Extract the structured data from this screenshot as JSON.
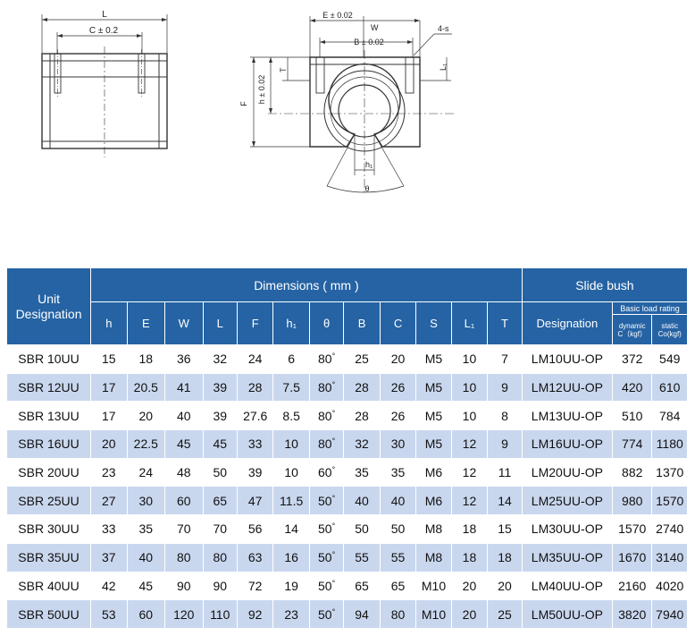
{
  "drawing": {
    "left_labels": {
      "length": "L",
      "hole_spacing": "C ± 0.2"
    },
    "right_labels": {
      "E": "E ± 0.02",
      "W": "W",
      "B": "B ± 0.02",
      "S": "4-s",
      "T": "T",
      "L1": "L₁",
      "h": "h ± 0.02",
      "F": "F",
      "h1": "h₁",
      "theta": "θ"
    }
  },
  "table": {
    "unit_header_line1": "Unit",
    "unit_header_line2": "Designation",
    "dimensions_header": "Dimensions ( mm )",
    "slide_bush_header": "Slide bush",
    "columns": [
      "h",
      "E",
      "W",
      "L",
      "F",
      "h₁",
      "θ",
      "B",
      "C",
      "S",
      "L₁",
      "T"
    ],
    "designation_header": "Designation",
    "load_rating_header": "Basic load rating",
    "dynamic_line1": "dynamic",
    "dynamic_line2": "C（kgf）",
    "static_line1": "static",
    "static_line2": "Co(kgf)",
    "rows": [
      {
        "unit": "SBR 10UU",
        "h": "15",
        "E": "18",
        "W": "36",
        "L": "32",
        "F": "24",
        "h1": "6",
        "theta": "80",
        "B": "25",
        "C": "20",
        "S": "M5",
        "L1": "10",
        "T": "7",
        "designation": "LM10UU-OP",
        "dynamic": "372",
        "static": "549"
      },
      {
        "unit": "SBR 12UU",
        "h": "17",
        "E": "20.5",
        "W": "41",
        "L": "39",
        "F": "28",
        "h1": "7.5",
        "theta": "80",
        "B": "28",
        "C": "26",
        "S": "M5",
        "L1": "10",
        "T": "9",
        "designation": "LM12UU-OP",
        "dynamic": "420",
        "static": "610"
      },
      {
        "unit": "SBR 13UU",
        "h": "17",
        "E": "20",
        "W": "40",
        "L": "39",
        "F": "27.6",
        "h1": "8.5",
        "theta": "80",
        "B": "28",
        "C": "26",
        "S": "M5",
        "L1": "10",
        "T": "8",
        "designation": "LM13UU-OP",
        "dynamic": "510",
        "static": "784"
      },
      {
        "unit": "SBR 16UU",
        "h": "20",
        "E": "22.5",
        "W": "45",
        "L": "45",
        "F": "33",
        "h1": "10",
        "theta": "80",
        "B": "32",
        "C": "30",
        "S": "M5",
        "L1": "12",
        "T": "9",
        "designation": "LM16UU-OP",
        "dynamic": "774",
        "static": "1180"
      },
      {
        "unit": "SBR 20UU",
        "h": "23",
        "E": "24",
        "W": "48",
        "L": "50",
        "F": "39",
        "h1": "10",
        "theta": "60",
        "B": "35",
        "C": "35",
        "S": "M6",
        "L1": "12",
        "T": "11",
        "designation": "LM20UU-OP",
        "dynamic": "882",
        "static": "1370"
      },
      {
        "unit": "SBR 25UU",
        "h": "27",
        "E": "30",
        "W": "60",
        "L": "65",
        "F": "47",
        "h1": "11.5",
        "theta": "50",
        "B": "40",
        "C": "40",
        "S": "M6",
        "L1": "12",
        "T": "14",
        "designation": "LM25UU-OP",
        "dynamic": "980",
        "static": "1570"
      },
      {
        "unit": "SBR 30UU",
        "h": "33",
        "E": "35",
        "W": "70",
        "L": "70",
        "F": "56",
        "h1": "14",
        "theta": "50",
        "B": "50",
        "C": "50",
        "S": "M8",
        "L1": "18",
        "T": "15",
        "designation": "LM30UU-OP",
        "dynamic": "1570",
        "static": "2740"
      },
      {
        "unit": "SBR 35UU",
        "h": "37",
        "E": "40",
        "W": "80",
        "L": "80",
        "F": "63",
        "h1": "16",
        "theta": "50",
        "B": "55",
        "C": "55",
        "S": "M8",
        "L1": "18",
        "T": "18",
        "designation": "LM35UU-OP",
        "dynamic": "1670",
        "static": "3140"
      },
      {
        "unit": "SBR 40UU",
        "h": "42",
        "E": "45",
        "W": "90",
        "L": "90",
        "F": "72",
        "h1": "19",
        "theta": "50",
        "B": "65",
        "C": "65",
        "S": "M10",
        "L1": "20",
        "T": "20",
        "designation": "LM40UU-OP",
        "dynamic": "2160",
        "static": "4020"
      },
      {
        "unit": "SBR 50UU",
        "h": "53",
        "E": "60",
        "W": "120",
        "L": "110",
        "F": "92",
        "h1": "23",
        "theta": "50",
        "B": "94",
        "C": "80",
        "S": "M10",
        "L1": "20",
        "T": "25",
        "designation": "LM50UU-OP",
        "dynamic": "3820",
        "static": "7940"
      }
    ]
  }
}
